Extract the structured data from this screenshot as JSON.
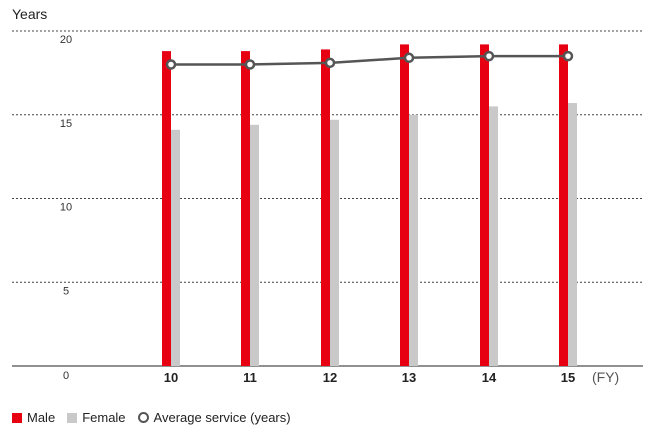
{
  "chart_data": {
    "type": "bar",
    "ylabel": "Years",
    "xunit": "(FY)",
    "categories": [
      "10",
      "11",
      "12",
      "13",
      "14",
      "15"
    ],
    "ylim": [
      0,
      20
    ],
    "yticks": [
      "0",
      "5",
      "10",
      "15",
      "20"
    ],
    "grid": "horizontal dashed",
    "legend_placement": "bottom-left",
    "series": [
      {
        "name": "Male",
        "type": "bar",
        "color": "#e60012",
        "values": [
          18.8,
          18.8,
          18.9,
          19.2,
          19.2,
          19.2
        ]
      },
      {
        "name": "Female",
        "type": "bar",
        "color": "#c9c9c9",
        "values": [
          14.1,
          14.4,
          14.7,
          15.0,
          15.5,
          15.7
        ]
      },
      {
        "name": "Average service (years)",
        "type": "line",
        "color": "#555555",
        "values": [
          18.0,
          18.0,
          18.1,
          18.4,
          18.5,
          18.5
        ]
      }
    ]
  },
  "legend": {
    "male": "Male",
    "female": "Female",
    "average": "Average service (years)"
  }
}
